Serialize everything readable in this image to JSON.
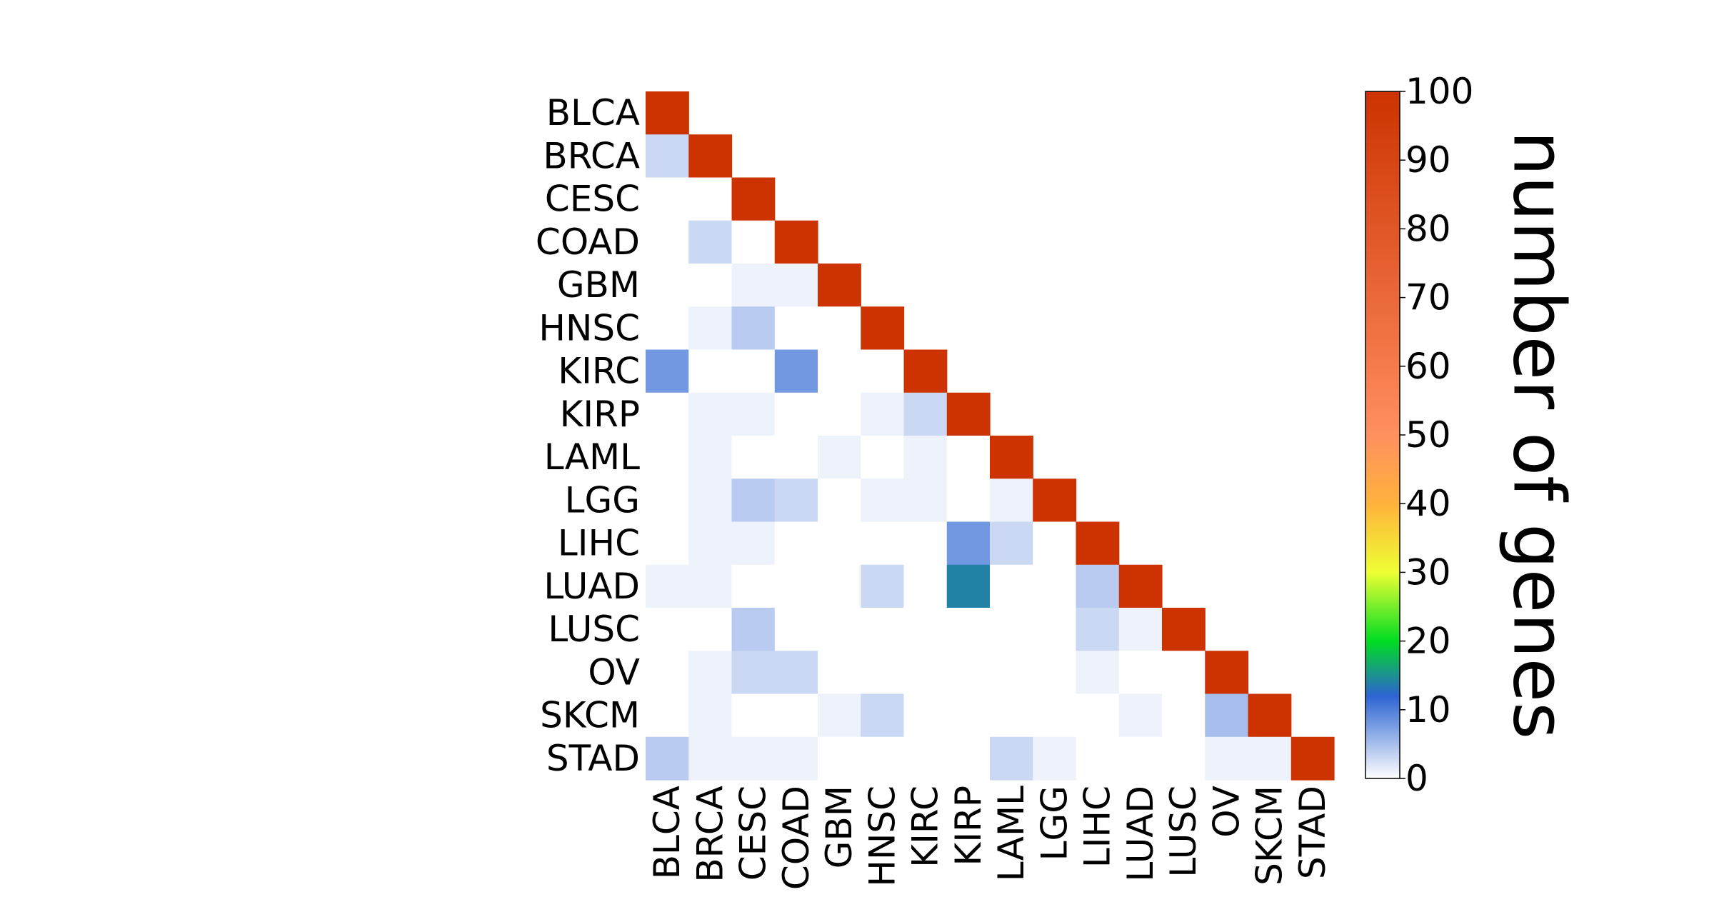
{
  "chart_data": {
    "type": "heatmap",
    "title": "",
    "xlabel": "",
    "ylabel": "",
    "categories": [
      "BLCA",
      "BRCA",
      "CESC",
      "COAD",
      "GBM",
      "HNSC",
      "KIRC",
      "KIRP",
      "LAML",
      "LGG",
      "LIHC",
      "LUAD",
      "LUSC",
      "OV",
      "SKCM",
      "STAD"
    ],
    "matrix_shape": "lower-triangular",
    "values": [
      [
        100
      ],
      [
        3,
        100
      ],
      [
        0,
        0,
        100
      ],
      [
        0,
        3,
        0,
        100
      ],
      [
        0,
        0,
        1,
        1,
        100
      ],
      [
        0,
        1,
        4,
        0,
        0,
        100
      ],
      [
        8,
        0,
        0,
        8,
        0,
        0,
        100
      ],
      [
        0,
        1,
        1,
        0,
        0,
        1,
        3,
        100
      ],
      [
        0,
        1,
        0,
        0,
        1,
        0,
        1,
        0,
        100
      ],
      [
        0,
        1,
        4,
        3,
        0,
        1,
        1,
        0,
        1,
        100
      ],
      [
        0,
        1,
        1,
        0,
        0,
        0,
        0,
        8,
        3,
        0,
        100
      ],
      [
        1,
        1,
        0,
        0,
        0,
        3,
        0,
        14,
        0,
        0,
        4,
        100
      ],
      [
        0,
        0,
        4,
        0,
        0,
        0,
        0,
        0,
        0,
        0,
        3,
        1,
        100
      ],
      [
        0,
        1,
        3,
        3,
        0,
        0,
        0,
        0,
        0,
        0,
        1,
        0,
        0,
        100
      ],
      [
        0,
        1,
        0,
        0,
        1,
        3,
        0,
        0,
        0,
        0,
        0,
        1,
        0,
        5,
        100
      ],
      [
        4,
        1,
        1,
        1,
        0,
        0,
        0,
        0,
        3,
        1,
        0,
        0,
        0,
        1,
        1,
        100
      ]
    ],
    "colorbar": {
      "label": "number of genes",
      "range": [
        0,
        100
      ],
      "ticks": [
        "0",
        "10",
        "20",
        "30",
        "40",
        "50",
        "60",
        "70",
        "80",
        "90",
        "100"
      ],
      "colormap": [
        {
          "v": 0,
          "color": "#ffffff"
        },
        {
          "v": 12,
          "color": "#2c64d2"
        },
        {
          "v": 20,
          "color": "#00dd22"
        },
        {
          "v": 30,
          "color": "#eeff33"
        },
        {
          "v": 40,
          "color": "#ffb23c"
        },
        {
          "v": 50,
          "color": "#ff9060"
        },
        {
          "v": 60,
          "color": "#f57a4c"
        },
        {
          "v": 100,
          "color": "#cc3300"
        }
      ]
    },
    "grid": false,
    "legend": "right"
  }
}
